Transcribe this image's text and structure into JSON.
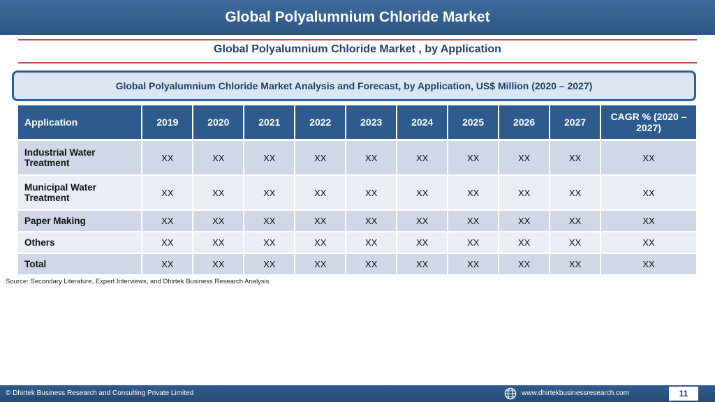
{
  "header": {
    "title": "Global Polyalumnium Chloride Market"
  },
  "subtitle": "Global Polyalumnium Chloride Market , by Application",
  "banner": "Global Polyalumnium Chloride Market  Analysis and Forecast, by Application, US$ Million (2020 – 2027)",
  "table": {
    "columns": [
      "Application",
      "2019",
      "2020",
      "2021",
      "2022",
      "2023",
      "2024",
      "2025",
      "2026",
      "2027",
      "CAGR % (2020 – 2027)"
    ],
    "rows": [
      {
        "label": "Industrial Water Treatment",
        "values": [
          "XX",
          "XX",
          "XX",
          "XX",
          "XX",
          "XX",
          "XX",
          "XX",
          "XX",
          "XX"
        ]
      },
      {
        "label": "Municipal Water Treatment",
        "values": [
          "XX",
          "XX",
          "XX",
          "XX",
          "XX",
          "XX",
          "XX",
          "XX",
          "XX",
          "XX"
        ]
      },
      {
        "label": "Paper Making",
        "values": [
          "XX",
          "XX",
          "XX",
          "XX",
          "XX",
          "XX",
          "XX",
          "XX",
          "XX",
          "XX"
        ]
      },
      {
        "label": "Others",
        "values": [
          "XX",
          "XX",
          "XX",
          "XX",
          "XX",
          "XX",
          "XX",
          "XX",
          "XX",
          "XX"
        ]
      },
      {
        "label": "Total",
        "values": [
          "XX",
          "XX",
          "XX",
          "XX",
          "XX",
          "XX",
          "XX",
          "XX",
          "XX",
          "XX"
        ]
      }
    ]
  },
  "source": "Source: Secondary Literature, Expert Interviews, and Dhirtek Business Research Analysis",
  "footer": {
    "copyright": "© Dhirtek Business Research and Consulting Private Limited",
    "website": "www.dhirtekbusinessresearch.com",
    "page_number": "11",
    "globe_icon": "globe-icon"
  },
  "colors": {
    "header_bg": "#3f6a9c",
    "table_header_bg": "#2e5b8e",
    "row_odd": "#d0d8e8",
    "row_even": "#e9edf4",
    "rule": "#c0504d"
  }
}
